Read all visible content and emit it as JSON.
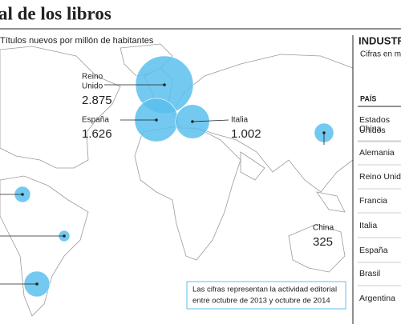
{
  "header": {
    "title": "al de los libros",
    "subtitle": "Títulos nuevos por millón de habitantes"
  },
  "map": {
    "bubbles": [
      {
        "name_lines": [
          "Reino",
          "Unido"
        ],
        "value": 2875,
        "value_label": "2.875"
      },
      {
        "name_lines": [
          "España"
        ],
        "value": 1626,
        "value_label": "1.626"
      },
      {
        "name_lines": [
          "Italia"
        ],
        "value": 1002,
        "value_label": "1.002"
      },
      {
        "name_lines": [
          "China"
        ],
        "value": 325,
        "value_label": "325"
      },
      {
        "name_lines": null,
        "value": 222,
        "value_label": null
      },
      {
        "name_lines": null,
        "value": 109,
        "value_label": null
      },
      {
        "name_lines": null,
        "value": 569,
        "value_label": null
      }
    ],
    "note": [
      "Las cifras representan la actividad editorial",
      "entre octubre de 2013 y octubre de 2014"
    ]
  },
  "panel": {
    "title": "INDUSTR",
    "subtitle": "Cifras en m",
    "column": "PAÍS",
    "rows": [
      [
        "Estados",
        "Unidos"
      ],
      [
        "China"
      ],
      [
        "Alemania"
      ],
      [
        "Reino Unido"
      ],
      [
        "Francia"
      ],
      [
        "Italia"
      ],
      [
        "España"
      ],
      [
        "Brasil"
      ],
      [
        "Argentina"
      ]
    ]
  }
}
